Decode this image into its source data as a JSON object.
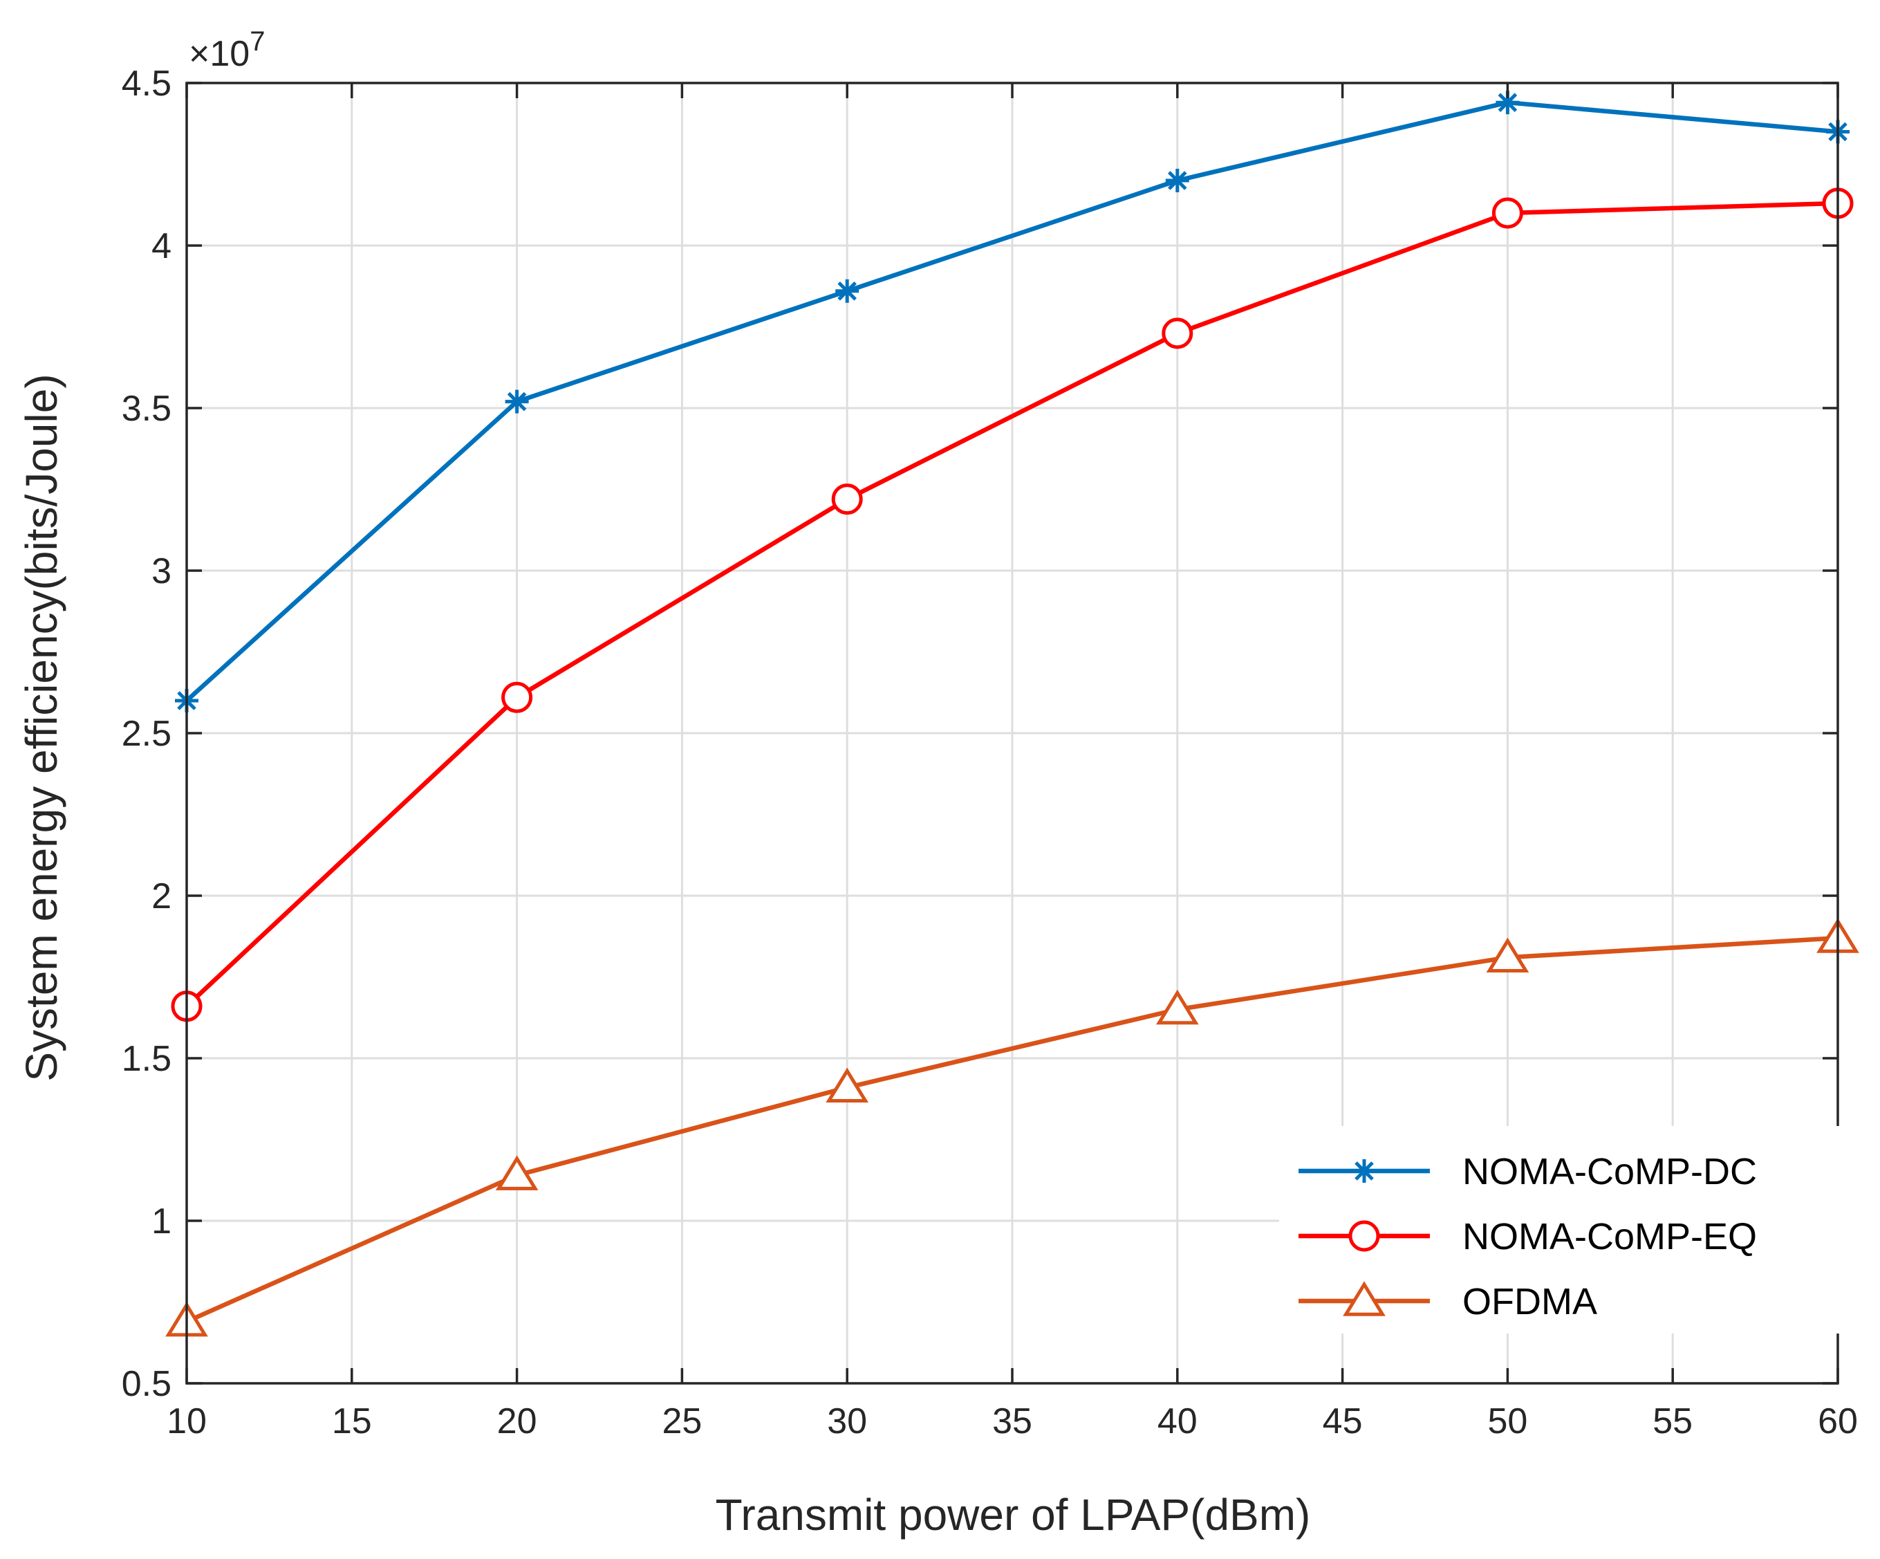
{
  "chart_data": {
    "type": "line",
    "title": "",
    "xlabel": "Transmit power of LPAP(dBm)",
    "ylabel": "System energy efficiency(bits/Joule)",
    "y_exponent_label": "×10",
    "y_exponent_power": "7",
    "xlim": [
      10,
      60
    ],
    "ylim": [
      0.5,
      4.5
    ],
    "xticks": [
      10,
      15,
      20,
      25,
      30,
      35,
      40,
      45,
      50,
      55,
      60
    ],
    "yticks": [
      0.5,
      1,
      1.5,
      2,
      2.5,
      3,
      3.5,
      4,
      4.5
    ],
    "xtick_labels": [
      "10",
      "15",
      "20",
      "25",
      "30",
      "35",
      "40",
      "45",
      "50",
      "55",
      "60"
    ],
    "ytick_labels": [
      "0.5",
      "1",
      "1.5",
      "2",
      "2.5",
      "3",
      "3.5",
      "4",
      "4.5"
    ],
    "grid": true,
    "legend_position": "lower-right",
    "x": [
      10,
      20,
      30,
      40,
      50,
      60
    ],
    "series": [
      {
        "name": "NOMA-CoMP-DC",
        "marker": "asterisk",
        "color": "#0072BD",
        "values": [
          2.6,
          3.52,
          3.86,
          4.2,
          4.44,
          4.35
        ]
      },
      {
        "name": "NOMA-CoMP-EQ",
        "marker": "circle",
        "color": "#FF0000",
        "values": [
          1.66,
          2.61,
          3.22,
          3.73,
          4.1,
          4.13
        ]
      },
      {
        "name": "OFDMA",
        "marker": "triangle",
        "color": "#D95319",
        "values": [
          0.69,
          1.14,
          1.41,
          1.65,
          1.81,
          1.87
        ]
      }
    ]
  }
}
